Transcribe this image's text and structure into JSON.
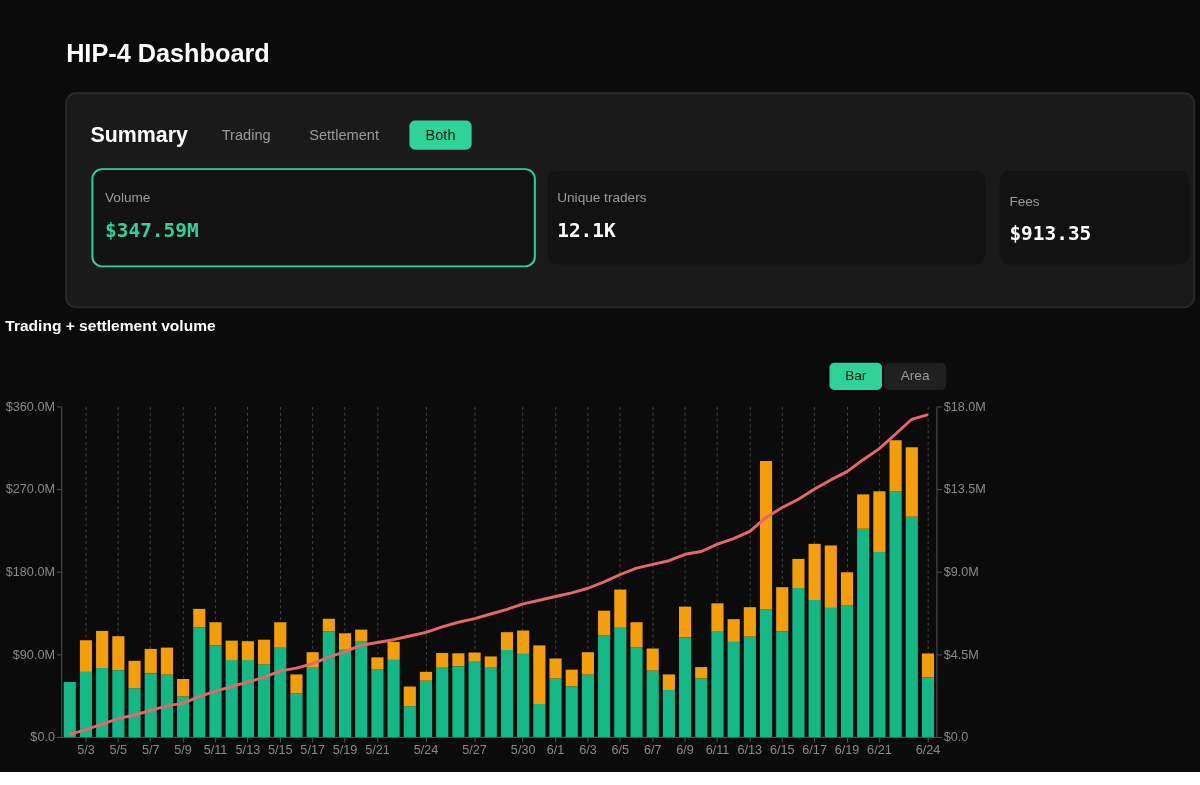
{
  "chart_data": [
    {
      "type": "other",
      "title": "HIP-4 Dashboard",
      "annotations": [
        "Summary",
        "Trading",
        "Settlement",
        "Both",
        "Volume",
        "$347.59M",
        "Unique traders",
        "12.1K",
        "Fees",
        "$913.35"
      ]
    },
    {
      "type": "bar",
      "title": "Trading + settlement volume",
      "annotations": [
        "Bar",
        "Area"
      ],
      "categories": [
        null,
        "5/3",
        null,
        "5/5",
        null,
        "5/7",
        null,
        "5/9",
        null,
        "5/11",
        null,
        "5/13",
        null,
        "5/15",
        null,
        "5/17",
        null,
        "5/19",
        null,
        "5/21",
        null,
        null,
        "5/24",
        null,
        null,
        "5/27",
        null,
        null,
        "5/30",
        null,
        "6/1",
        null,
        "6/3",
        null,
        "6/5",
        null,
        "6/7",
        null,
        "6/9",
        null,
        "6/11",
        null,
        "6/13",
        null,
        "6/15",
        null,
        "6/17",
        null,
        "6/19",
        null,
        "6/21",
        null,
        null,
        "6/24"
      ],
      "stacked": true,
      "series": [
        {
          "color": "#14b886",
          "axis": "y2",
          "values": [
            3.0,
            3.55,
            3.76,
            3.64,
            2.66,
            3.48,
            3.4,
            2.21,
            5.97,
            4.99,
            4.19,
            4.19,
            3.96,
            4.87,
            2.37,
            3.78,
            5.75,
            4.75,
            5.23,
            3.67,
            4.2,
            1.68,
            3.07,
            3.81,
            3.86,
            4.1,
            3.78,
            4.74,
            4.53,
            1.8,
            3.19,
            2.76,
            3.4,
            5.54,
            5.95,
            4.89,
            3.62,
            2.56,
            5.44,
            3.19,
            5.77,
            5.18,
            5.47,
            6.94,
            5.75,
            8.11,
            7.46,
            7.03,
            7.19,
            11.34,
            10.07,
            13.38,
            12.0,
            3.26
          ]
        },
        {
          "color": "#f59e0b",
          "axis": "y2",
          "values": [
            null,
            1.72,
            2.02,
            1.85,
            1.49,
            1.32,
            1.47,
            0.95,
            1.01,
            1.26,
            1.06,
            1.03,
            1.34,
            1.38,
            1.04,
            0.84,
            0.69,
            0.9,
            0.62,
            0.67,
            0.98,
            1.07,
            0.48,
            0.77,
            0.7,
            0.5,
            0.61,
            0.97,
            1.27,
            3.19,
            1.08,
            0.91,
            1.22,
            1.34,
            2.08,
            1.36,
            1.2,
            0.85,
            1.66,
            0.62,
            1.51,
            1.24,
            1.6,
            8.09,
            2.41,
            1.59,
            3.06,
            3.4,
            1.78,
            1.87,
            3.31,
            2.78,
            3.78,
            1.29
          ]
        },
        {
          "type": "line",
          "color": "#e5676b",
          "axis": "y",
          "values": [
            3,
            8,
            14,
            20,
            24,
            29,
            34,
            37,
            44,
            50,
            55,
            60,
            65,
            72,
            75,
            80,
            87,
            93,
            100,
            103,
            106,
            110,
            114,
            120,
            125,
            129,
            134,
            139,
            145,
            149,
            153,
            157,
            162,
            169,
            177,
            184,
            188,
            192,
            199,
            202,
            210,
            216,
            224,
            239,
            250,
            259,
            270,
            280,
            289,
            302,
            314,
            330,
            346,
            351
          ]
        }
      ],
      "ylim": [
        0,
        360
      ],
      "yticks": [
        {
          "value": 0,
          "label": "$0.0"
        },
        {
          "value": 90,
          "label": "$90.0M"
        },
        {
          "value": 180,
          "label": "$180.0M"
        },
        {
          "value": 270,
          "label": "$270.0M"
        },
        {
          "value": 360,
          "label": "$360.0M"
        }
      ],
      "y2lim": [
        0,
        18
      ],
      "y2ticks": [
        {
          "value": 0,
          "label": "$0.0"
        },
        {
          "value": 4.5,
          "label": "$4.5M"
        },
        {
          "value": 9,
          "label": "$9.0M"
        },
        {
          "value": 13.5,
          "label": "$13.5M"
        },
        {
          "value": 18,
          "label": "$18.0M"
        }
      ],
      "grid": "x",
      "legend": false,
      "marker": "none",
      "line_style": "solid"
    }
  ]
}
